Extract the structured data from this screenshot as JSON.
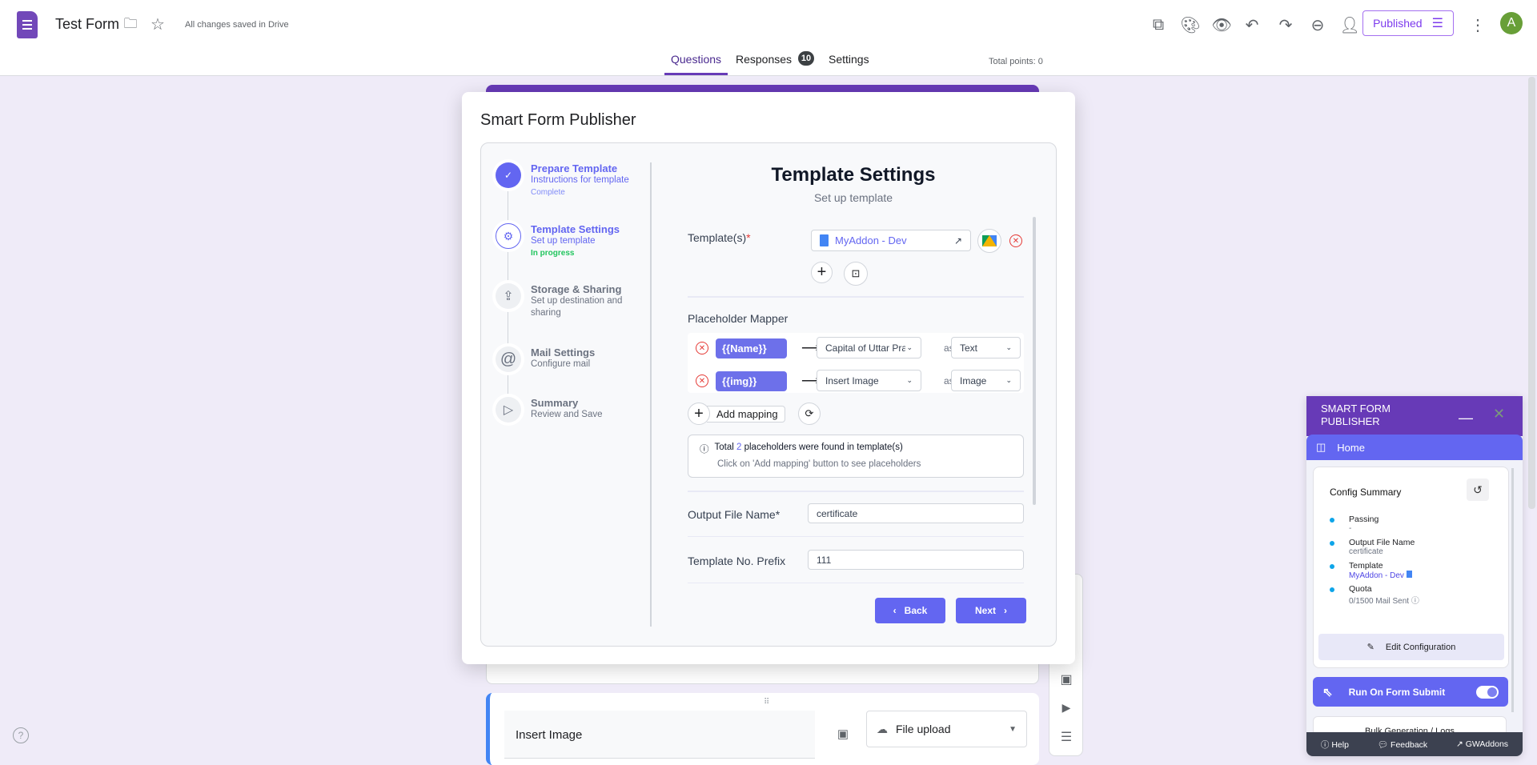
{
  "header": {
    "title": "Test Form",
    "save_status": "All changes saved in Drive",
    "published_label": "Published",
    "avatar_letter": "A",
    "icons": [
      "addon-icon",
      "palette-icon",
      "preview-icon",
      "undo-icon",
      "redo-icon",
      "link-icon",
      "add-collaborator-icon"
    ]
  },
  "tabs": [
    {
      "label": "Questions",
      "active": true
    },
    {
      "label": "Responses",
      "badge": "10"
    },
    {
      "label": "Settings"
    }
  ],
  "total_points": "Total points: 0",
  "modal": {
    "title": "Smart Form Publisher",
    "steps": [
      {
        "title": "Prepare Template",
        "subtitle": "Instructions for template",
        "status": "Complete"
      },
      {
        "title": "Template Settings",
        "subtitle": "Set up template",
        "status": "In progress"
      },
      {
        "title": "Storage & Sharing",
        "subtitle": "Set up destination and sharing"
      },
      {
        "title": "Mail Settings",
        "subtitle": "Configure mail"
      },
      {
        "title": "Summary",
        "subtitle": "Review and Save"
      }
    ],
    "heading": "Template Settings",
    "subheading": "Set up template",
    "templates_label": "Template(s)",
    "required_mark": "*",
    "template_file": "MyAddon - Dev",
    "placeholder_mapper_label": "Placeholder Mapper",
    "mappings": [
      {
        "placeholder": "{{Name}}",
        "question": "Capital of Uttar Prade",
        "as": "as",
        "type": "Text"
      },
      {
        "placeholder": "{{img}}",
        "question": "Insert Image",
        "as": "as",
        "type": "Image"
      }
    ],
    "add_mapping": "Add mapping",
    "info": {
      "prefix": "Total",
      "count": "2",
      "suffix": "placeholders were found in template(s)",
      "hint": "Click on 'Add mapping' button to see placeholders"
    },
    "output_file_label": "Output File Name*",
    "output_file_value": "certificate",
    "prefix_label": "Template No. Prefix",
    "prefix_value": "111",
    "back": "Back",
    "next": "Next"
  },
  "form": {
    "question_title": "Insert Image",
    "question_type": "File upload"
  },
  "panel": {
    "title": "SMART FORM PUBLISHER",
    "nav": "Home",
    "config_title": "Config Summary",
    "items": [
      {
        "label": "Passing",
        "value": "-"
      },
      {
        "label": "Output File Name",
        "value": "certificate"
      },
      {
        "label": "Template",
        "value": "MyAddon - Dev"
      },
      {
        "label": "Quota",
        "value": "0/1500 Mail Sent"
      }
    ],
    "edit": "Edit Configuration",
    "run_on_submit": "Run On Form Submit",
    "run_on_submit_enabled": true,
    "bulk": "Bulk Generation / Logs",
    "footer": [
      "Help",
      "Feedback",
      "GWAddons"
    ]
  },
  "colors": {
    "brand": "#673ab7",
    "accent": "#6366f1",
    "success": "#22c55e",
    "danger": "#e53935"
  }
}
